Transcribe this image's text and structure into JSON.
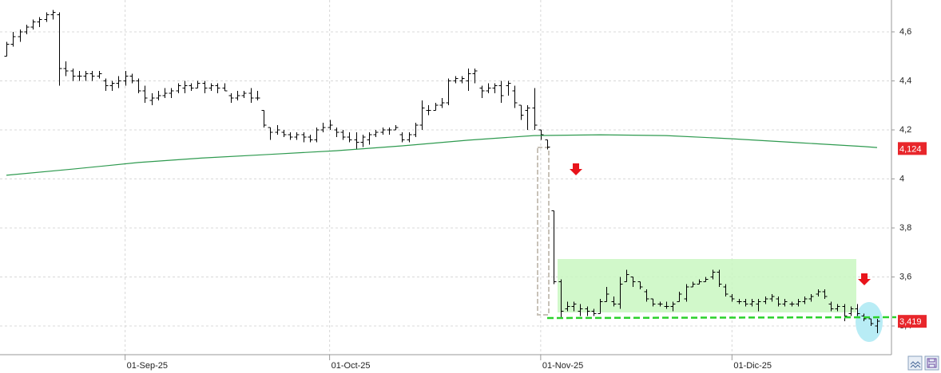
{
  "chart_data": {
    "type": "ohlc",
    "color": "#000000",
    "grid": true,
    "ylim": [
      3.283,
      4.73
    ],
    "yticks": [
      {
        "value": 4.6,
        "label": "4,6"
      },
      {
        "value": 4.4,
        "label": "4,4"
      },
      {
        "value": 4.2,
        "label": "4,2"
      },
      4,
      {
        "value": 3.8,
        "label": "3,8"
      },
      {
        "value": 3.6,
        "label": "3,6"
      },
      {
        "value": 3.4,
        "label": "3,4"
      }
    ],
    "categories": [
      null,
      null,
      null,
      null,
      null,
      null,
      null,
      null,
      null,
      null,
      null,
      null,
      null,
      null,
      null,
      null,
      null,
      null,
      "01-Sep-25",
      null,
      null,
      null,
      null,
      null,
      null,
      null,
      null,
      null,
      null,
      null,
      null,
      null,
      null,
      null,
      null,
      null,
      null,
      null,
      null,
      null,
      null,
      null,
      null,
      null,
      null,
      null,
      null,
      null,
      null,
      "01-Oct-25",
      null,
      null,
      null,
      null,
      null,
      null,
      null,
      null,
      null,
      null,
      null,
      null,
      null,
      null,
      null,
      null,
      null,
      null,
      null,
      null,
      null,
      null,
      null,
      null,
      null,
      null,
      null,
      null,
      null,
      null,
      null,
      "01-Nov-25",
      null,
      null,
      null,
      null,
      null,
      null,
      null,
      null,
      null,
      null,
      null,
      null,
      null,
      null,
      null,
      null,
      null,
      null,
      null,
      null,
      null,
      null,
      null,
      null,
      null,
      null,
      null,
      null,
      "01-Dic-25",
      null,
      null,
      null,
      null,
      null,
      null,
      null,
      null,
      null,
      null,
      null,
      null,
      null,
      null,
      null,
      null,
      null,
      null,
      null,
      null,
      null,
      null
    ],
    "open": [
      4.5,
      4.55,
      4.58,
      4.6,
      4.62,
      4.64,
      4.65,
      4.67,
      4.67,
      4.45,
      4.44,
      4.42,
      4.42,
      4.43,
      4.42,
      4.4,
      4.38,
      4.39,
      4.4,
      4.42,
      4.4,
      4.36,
      4.32,
      4.33,
      4.34,
      4.35,
      4.36,
      4.37,
      4.38,
      4.37,
      4.39,
      4.37,
      4.38,
      4.37,
      4.34,
      4.33,
      4.34,
      4.35,
      4.33,
      4.28,
      4.21,
      4.19,
      4.19,
      4.18,
      4.17,
      4.18,
      4.17,
      4.16,
      4.2,
      4.21,
      4.2,
      4.19,
      4.17,
      4.16,
      4.15,
      4.16,
      4.18,
      4.19,
      4.2,
      4.2,
      4.18,
      4.16,
      4.18,
      4.22,
      4.28,
      4.28,
      4.3,
      4.31,
      4.4,
      4.4,
      4.4,
      4.43,
      4.37,
      4.36,
      4.37,
      4.38,
      4.38,
      4.36,
      4.3,
      4.28,
      4.29,
      4.2,
      4.16,
      3.87,
      3.58,
      3.47,
      3.48,
      3.46,
      3.47,
      3.46,
      3.45,
      3.5,
      3.5,
      3.49,
      3.58,
      3.6,
      3.58,
      3.54,
      3.51,
      3.49,
      3.48,
      3.48,
      3.5,
      3.51,
      3.56,
      3.57,
      3.58,
      3.6,
      3.62,
      3.56,
      3.52,
      3.5,
      3.5,
      3.49,
      3.49,
      3.5,
      3.51,
      3.51,
      3.49,
      3.49,
      3.49,
      3.5,
      3.51,
      3.53,
      3.54,
      3.49,
      3.47,
      3.48,
      3.45,
      3.47,
      3.44,
      3.43,
      3.4
    ],
    "high": [
      4.56,
      4.6,
      4.61,
      4.63,
      4.65,
      4.66,
      4.68,
      4.69,
      4.68,
      4.48,
      4.45,
      4.44,
      4.44,
      4.44,
      4.44,
      4.41,
      4.4,
      4.42,
      4.44,
      4.43,
      4.41,
      4.38,
      4.35,
      4.36,
      4.37,
      4.37,
      4.39,
      4.4,
      4.39,
      4.4,
      4.4,
      4.39,
      4.39,
      4.39,
      4.35,
      4.36,
      4.36,
      4.37,
      4.36,
      4.28,
      4.21,
      4.22,
      4.2,
      4.19,
      4.19,
      4.19,
      4.18,
      4.21,
      4.23,
      4.24,
      4.21,
      4.2,
      4.19,
      4.19,
      4.18,
      4.19,
      4.2,
      4.21,
      4.21,
      4.22,
      4.19,
      4.19,
      4.23,
      4.32,
      4.3,
      4.31,
      4.33,
      4.41,
      4.42,
      4.42,
      4.45,
      4.45,
      4.38,
      4.39,
      4.39,
      4.4,
      4.4,
      4.38,
      4.3,
      4.3,
      4.37,
      4.2,
      4.16,
      3.87,
      3.59,
      3.5,
      3.5,
      3.49,
      3.48,
      3.47,
      3.51,
      3.56,
      3.52,
      3.6,
      3.63,
      3.6,
      3.58,
      3.55,
      3.51,
      3.5,
      3.5,
      3.5,
      3.54,
      3.57,
      3.58,
      3.59,
      3.6,
      3.63,
      3.63,
      3.57,
      3.53,
      3.51,
      3.51,
      3.51,
      3.51,
      3.52,
      3.53,
      3.52,
      3.51,
      3.5,
      3.51,
      3.52,
      3.53,
      3.55,
      3.55,
      3.5,
      3.49,
      3.49,
      3.48,
      3.49,
      3.45,
      3.43,
      3.43
    ],
    "low": [
      4.5,
      4.54,
      4.56,
      4.59,
      4.61,
      4.62,
      4.64,
      4.65,
      4.38,
      4.42,
      4.4,
      4.4,
      4.4,
      4.4,
      4.41,
      4.36,
      4.36,
      4.37,
      4.38,
      4.39,
      4.35,
      4.31,
      4.3,
      4.32,
      4.33,
      4.33,
      4.35,
      4.35,
      4.36,
      4.37,
      4.35,
      4.36,
      4.35,
      4.36,
      4.31,
      4.32,
      4.33,
      4.31,
      4.32,
      4.21,
      4.16,
      4.18,
      4.17,
      4.16,
      4.16,
      4.15,
      4.15,
      4.15,
      4.19,
      4.2,
      4.17,
      4.16,
      4.15,
      4.12,
      4.13,
      4.14,
      4.17,
      4.18,
      4.18,
      4.2,
      4.15,
      4.15,
      4.17,
      4.2,
      4.26,
      4.28,
      4.29,
      4.3,
      4.39,
      4.39,
      4.36,
      4.39,
      4.33,
      4.35,
      4.35,
      4.31,
      4.34,
      4.29,
      4.24,
      4.2,
      4.2,
      4.16,
      4.12,
      3.57,
      3.43,
      3.46,
      3.46,
      3.44,
      3.44,
      3.44,
      3.45,
      3.5,
      3.48,
      3.47,
      3.58,
      3.56,
      3.55,
      3.5,
      3.48,
      3.48,
      3.47,
      3.46,
      3.5,
      3.5,
      3.56,
      3.57,
      3.58,
      3.59,
      3.56,
      3.52,
      3.5,
      3.49,
      3.48,
      3.48,
      3.46,
      3.49,
      3.5,
      3.48,
      3.48,
      3.48,
      3.48,
      3.49,
      3.5,
      3.52,
      3.51,
      3.46,
      3.46,
      3.42,
      3.44,
      3.44,
      3.42,
      3.4,
      3.37
    ],
    "close": [
      4.55,
      4.58,
      4.6,
      4.62,
      4.64,
      4.65,
      4.67,
      4.68,
      4.45,
      4.44,
      4.42,
      4.42,
      4.43,
      4.42,
      4.43,
      4.38,
      4.39,
      4.4,
      4.42,
      4.4,
      4.36,
      4.33,
      4.33,
      4.34,
      4.35,
      4.36,
      4.38,
      4.38,
      4.37,
      4.39,
      4.37,
      4.38,
      4.37,
      4.36,
      4.33,
      4.34,
      4.35,
      4.33,
      4.33,
      4.22,
      4.19,
      4.2,
      4.18,
      4.17,
      4.18,
      4.17,
      4.16,
      4.2,
      4.21,
      4.22,
      4.19,
      4.17,
      4.16,
      4.15,
      4.17,
      4.18,
      4.19,
      4.2,
      4.2,
      4.21,
      4.16,
      4.18,
      4.22,
      4.29,
      4.28,
      4.3,
      4.31,
      4.4,
      4.41,
      4.41,
      4.43,
      4.44,
      4.36,
      4.37,
      4.38,
      4.34,
      4.39,
      4.31,
      4.26,
      4.29,
      4.22,
      4.18,
      4.13,
      3.58,
      3.46,
      3.48,
      3.49,
      3.47,
      3.46,
      3.45,
      3.5,
      3.53,
      3.49,
      3.57,
      3.61,
      3.58,
      3.56,
      3.51,
      3.49,
      3.49,
      3.48,
      3.49,
      3.53,
      3.56,
      3.57,
      3.58,
      3.59,
      3.62,
      3.57,
      3.53,
      3.51,
      3.5,
      3.49,
      3.5,
      3.5,
      3.51,
      3.52,
      3.49,
      3.5,
      3.49,
      3.5,
      3.51,
      3.52,
      3.54,
      3.52,
      3.47,
      3.48,
      3.44,
      3.47,
      3.45,
      3.43,
      3.41,
      3.42
    ],
    "moving_average": {
      "color": "#2e9a4f",
      "x": [
        0,
        10,
        20,
        30,
        40,
        50,
        60,
        70,
        80,
        90,
        100,
        110,
        120,
        130,
        132
      ],
      "values": [
        4.015,
        4.04,
        4.067,
        4.086,
        4.1,
        4.115,
        4.135,
        4.158,
        4.177,
        4.18,
        4.177,
        4.164,
        4.148,
        4.132,
        4.128
      ]
    },
    "price_labels": {
      "color": "#e8262b",
      "items": [
        {
          "value": 4.124,
          "label": "4,124"
        },
        {
          "value": 3.419,
          "label": "3,419"
        }
      ]
    }
  }
}
